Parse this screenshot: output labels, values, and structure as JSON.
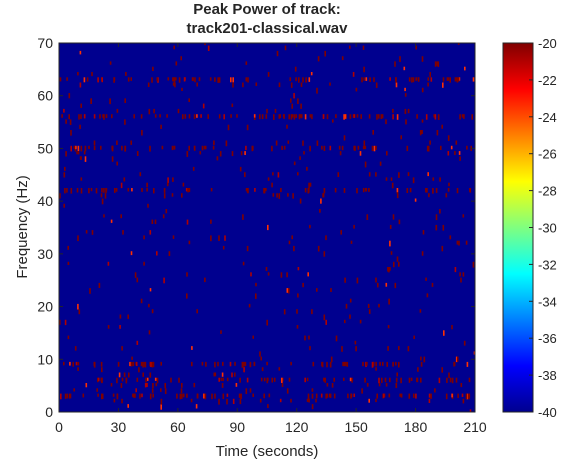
{
  "chart_data": {
    "type": "heatmap",
    "title_line1": "Peak Power of track:",
    "title_line2": "track201-classical.wav",
    "xlabel": "Time (seconds)",
    "ylabel": "Frequency (Hz)",
    "xlim": [
      0,
      210
    ],
    "ylim": [
      0,
      70
    ],
    "x_ticks": [
      "0",
      "30",
      "60",
      "90",
      "120",
      "150",
      "180",
      "210"
    ],
    "y_ticks": [
      "0",
      "10",
      "20",
      "30",
      "40",
      "50",
      "60",
      "70"
    ],
    "colorbar": {
      "colormap": "jet",
      "range": [
        -40,
        -20
      ],
      "ticks": [
        "-20",
        "-22",
        "-24",
        "-26",
        "-28",
        "-30",
        "-32",
        "-34",
        "-36",
        "-38",
        "-40"
      ]
    },
    "background_value": -40,
    "peak_value": -20,
    "dominant_peak_bands_hz": [
      3,
      6,
      9,
      42,
      50,
      56,
      63
    ],
    "grid": false,
    "legend": "none",
    "colors": {
      "low": "#00008f",
      "high": "#800000"
    }
  }
}
